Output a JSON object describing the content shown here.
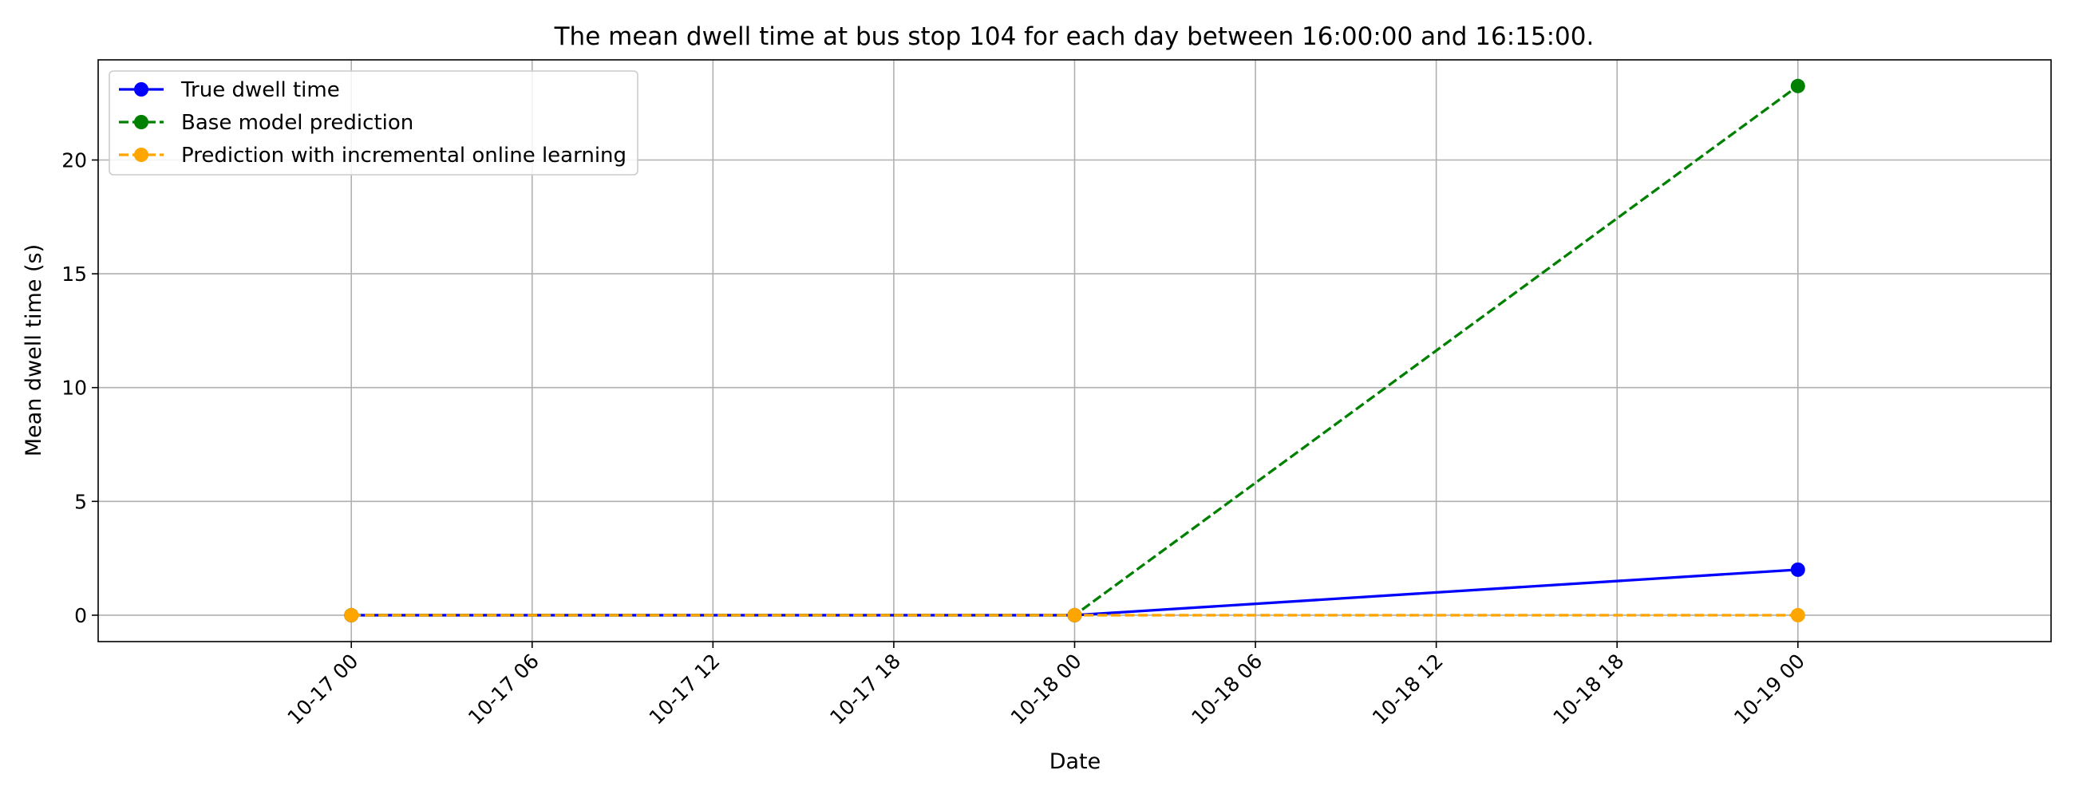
{
  "chart_data": {
    "type": "line",
    "title": "The mean dwell time at bus stop 104 for each day between 16:00:00 and 16:15:00.",
    "xlabel": "Date",
    "ylabel": "Mean dwell time (s)",
    "x": [
      "2024-10-17",
      "2024-10-18",
      "2024-10-19"
    ],
    "xlim": [
      "10-16 15:36",
      "10-19 08:24"
    ],
    "ylim": [
      -1.16,
      24.4
    ],
    "x_ticks": [
      "10-17 00",
      "10-17 06",
      "10-17 12",
      "10-17 18",
      "10-18 00",
      "10-18 06",
      "10-18 12",
      "10-18 18",
      "10-19 00"
    ],
    "y_ticks": [
      0,
      5,
      10,
      15,
      20
    ],
    "grid": true,
    "legend_position": "upper-left",
    "series": [
      {
        "name": "True dwell time",
        "values": [
          0,
          0,
          2.0
        ],
        "color": "#0000ff",
        "linestyle": "solid",
        "marker": "circle"
      },
      {
        "name": "Base model prediction",
        "values": [
          0,
          0,
          23.25
        ],
        "color": "#008000",
        "linestyle": "dashed",
        "marker": "circle"
      },
      {
        "name": "Prediction with incremental online learning",
        "values": [
          0,
          0,
          0
        ],
        "color": "#ffa500",
        "linestyle": "dashed",
        "marker": "circle"
      }
    ]
  }
}
